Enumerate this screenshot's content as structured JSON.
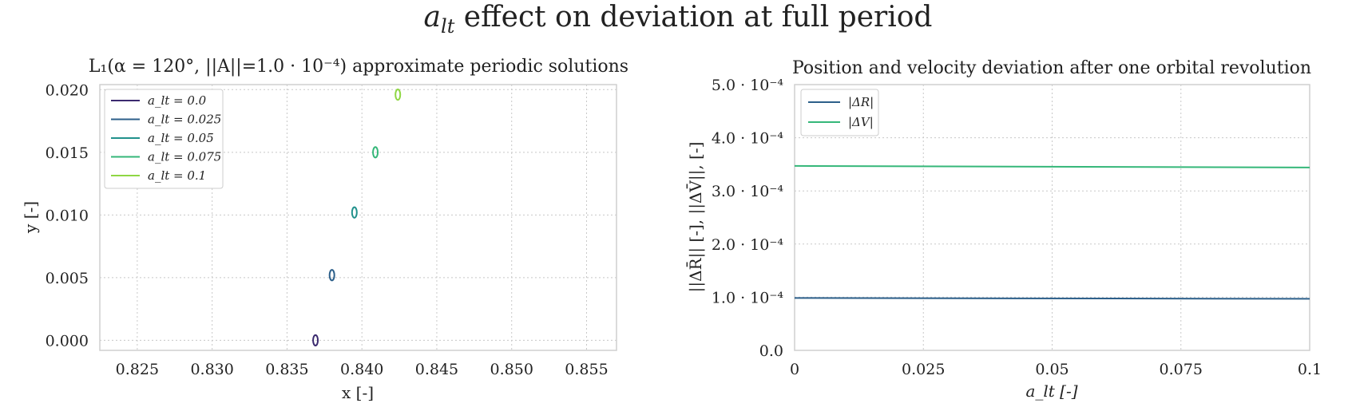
{
  "figure": {
    "suptitle_symbol": "a",
    "suptitle_sub": "lt",
    "suptitle_rest": " effect on deviation at full period"
  },
  "chart_data": [
    {
      "type": "line",
      "title": "L₁(α = 120°, ||A||=1.0 · 10⁻⁴) approximate periodic solutions",
      "xlabel": "x [-]",
      "ylabel": "y [-]",
      "xlim": [
        0.8225,
        0.857
      ],
      "ylim": [
        -0.0008,
        0.0204
      ],
      "xticks": [
        0.825,
        0.83,
        0.835,
        0.84,
        0.845,
        0.85,
        0.855
      ],
      "xticklabels": [
        "0.825",
        "0.830",
        "0.835",
        "0.840",
        "0.845",
        "0.850",
        "0.855"
      ],
      "yticks": [
        0.0,
        0.005,
        0.01,
        0.015,
        0.02
      ],
      "yticklabels": [
        "0.000",
        "0.005",
        "0.010",
        "0.015",
        "0.020"
      ],
      "grid": true,
      "legend_position": "top-left",
      "series": [
        {
          "name": "a_lt = 0.0",
          "color": "#3b2a6f",
          "center": [
            0.8369,
            0.0
          ],
          "half_width": 0.00016,
          "half_height": 0.00042
        },
        {
          "name": "a_lt = 0.025",
          "color": "#2c5f8a",
          "center": [
            0.838,
            0.0052
          ],
          "half_width": 0.00016,
          "half_height": 0.00042
        },
        {
          "name": "a_lt = 0.05",
          "color": "#21918c",
          "center": [
            0.8395,
            0.0102
          ],
          "half_width": 0.00016,
          "half_height": 0.00042
        },
        {
          "name": "a_lt = 0.075",
          "color": "#35b779",
          "center": [
            0.8409,
            0.015
          ],
          "half_width": 0.00016,
          "half_height": 0.00042
        },
        {
          "name": "a_lt = 0.1",
          "color": "#8fd744",
          "center": [
            0.8424,
            0.0196
          ],
          "half_width": 0.00016,
          "half_height": 0.00042
        }
      ]
    },
    {
      "type": "line",
      "title": "Position and velocity deviation after one orbital revolution",
      "xlabel": "a_lt [-]",
      "ylabel": "||ΔR̄|| [-], ||ΔV̄||, [-]",
      "xlim": [
        0,
        0.1
      ],
      "ylim": [
        0,
        0.0005
      ],
      "xticks": [
        0,
        0.025,
        0.05,
        0.075,
        0.1
      ],
      "xticklabels": [
        "0",
        "0.025",
        "0.05",
        "0.075",
        "0.1"
      ],
      "yticks": [
        0,
        0.0001,
        0.0002,
        0.0003,
        0.0004,
        0.0005
      ],
      "yticklabels": [
        "0.0",
        "1.0 · 10⁻⁴",
        "2.0 · 10⁻⁴",
        "3.0 · 10⁻⁴",
        "4.0 · 10⁻⁴",
        "5.0 · 10⁻⁴"
      ],
      "grid": true,
      "legend_position": "top-left",
      "series": [
        {
          "name": "|ΔR|",
          "color": "#2c5f8a",
          "x": [
            0,
            0.1
          ],
          "values": [
            9.85e-05,
            9.7e-05
          ]
        },
        {
          "name": "|ΔV|",
          "color": "#35b779",
          "x": [
            0,
            0.1
          ],
          "values": [
            0.000347,
            0.000344
          ]
        }
      ]
    }
  ]
}
